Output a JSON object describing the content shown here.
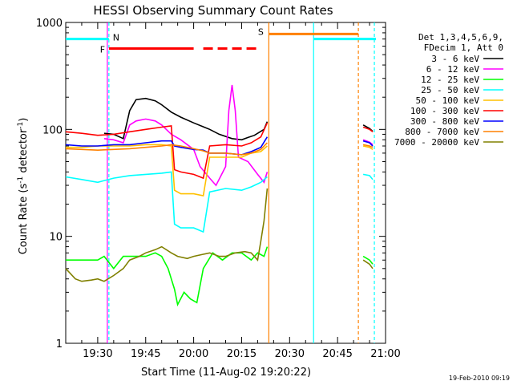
{
  "chart_data": {
    "type": "line",
    "title": "HESSI Observing Summary Count Rates",
    "xlabel": "Start Time (11-Aug-02 19:20:22)",
    "ylabel_main": "Count Rate (s",
    "ylabel_sup1": "-1",
    "ylabel_mid": " detector",
    "ylabel_sup2": "-1",
    "ylabel_end": ")",
    "footer": "19-Feb-2010 09:19",
    "yscale": "log",
    "ylim": [
      1,
      1000
    ],
    "xlim_minutes": [
      0,
      100
    ],
    "x_ticks": [
      {
        "label": "19:30",
        "t": 10
      },
      {
        "label": "19:45",
        "t": 25
      },
      {
        "label": "20:00",
        "t": 40
      },
      {
        "label": "20:15",
        "t": 55
      },
      {
        "label": "20:30",
        "t": 70
      },
      {
        "label": "20:45",
        "t": 85
      },
      {
        "label": "21:00",
        "t": 100
      }
    ],
    "y_ticks": [
      {
        "label": "1",
        "v": 1
      },
      {
        "label": "10",
        "v": 10
      },
      {
        "label": "100",
        "v": 100
      },
      {
        "label": "1000",
        "v": 1000
      }
    ],
    "legend_header": [
      "Det 1,3,4,5,6,9,",
      "FDecim 1, Att 0"
    ],
    "series": [
      {
        "name": "3 - 6 keV",
        "color": "#000000",
        "points": [
          [
            12,
            92
          ],
          [
            15,
            90
          ],
          [
            18,
            82
          ],
          [
            20,
            150
          ],
          [
            22,
            190
          ],
          [
            25,
            195
          ],
          [
            28,
            185
          ],
          [
            30,
            170
          ],
          [
            33,
            145
          ],
          [
            36,
            130
          ],
          [
            40,
            115
          ],
          [
            45,
            100
          ],
          [
            48,
            90
          ],
          [
            52,
            82
          ],
          [
            55,
            80
          ],
          [
            57,
            84
          ],
          [
            59,
            88
          ],
          [
            62,
            100
          ],
          [
            63,
            118
          ]
        ],
        "points2": [
          [
            93,
            110
          ],
          [
            95,
            102
          ],
          [
            96,
            96
          ]
        ]
      },
      {
        "name": "6 - 12 keV",
        "color": "#ff00ff",
        "points": [
          [
            12,
            82
          ],
          [
            15,
            80
          ],
          [
            18,
            75
          ],
          [
            20,
            110
          ],
          [
            22,
            120
          ],
          [
            25,
            125
          ],
          [
            28,
            120
          ],
          [
            30,
            110
          ],
          [
            33,
            90
          ],
          [
            36,
            80
          ],
          [
            40,
            65
          ],
          [
            42,
            45
          ],
          [
            45,
            35
          ],
          [
            47,
            30
          ],
          [
            50,
            45
          ],
          [
            51,
            150
          ],
          [
            52,
            260
          ],
          [
            53,
            150
          ],
          [
            54,
            55
          ],
          [
            57,
            50
          ],
          [
            60,
            38
          ],
          [
            62,
            32
          ],
          [
            63,
            40
          ]
        ],
        "points2": [
          [
            93,
            80
          ],
          [
            95,
            76
          ],
          [
            96,
            72
          ]
        ]
      },
      {
        "name": "12 - 25 keV",
        "color": "#00ff00",
        "points": [
          [
            0,
            6
          ],
          [
            5,
            6
          ],
          [
            10,
            6
          ],
          [
            12,
            6.5
          ],
          [
            15,
            5
          ],
          [
            18,
            6.5
          ],
          [
            21,
            6.5
          ],
          [
            25,
            6.5
          ],
          [
            28,
            7
          ],
          [
            30,
            6.5
          ],
          [
            32,
            5
          ],
          [
            34,
            3.2
          ],
          [
            35,
            2.3
          ],
          [
            37,
            3
          ],
          [
            39,
            2.6
          ],
          [
            41,
            2.4
          ],
          [
            43,
            5
          ],
          [
            46,
            7
          ],
          [
            49,
            6
          ],
          [
            52,
            7
          ],
          [
            55,
            7
          ],
          [
            58,
            6
          ],
          [
            60,
            7
          ],
          [
            62,
            6.5
          ],
          [
            63,
            8
          ]
        ],
        "points2": [
          [
            93,
            6.5
          ],
          [
            95,
            6
          ],
          [
            96,
            5.5
          ]
        ]
      },
      {
        "name": "25 - 50 keV",
        "color": "#00ffff",
        "points": [
          [
            0,
            36
          ],
          [
            5,
            34
          ],
          [
            10,
            32
          ],
          [
            15,
            35
          ],
          [
            20,
            37
          ],
          [
            25,
            38
          ],
          [
            30,
            39
          ],
          [
            33,
            40
          ],
          [
            34,
            13
          ],
          [
            36,
            12
          ],
          [
            40,
            12
          ],
          [
            43,
            11
          ],
          [
            45,
            26
          ],
          [
            50,
            28
          ],
          [
            55,
            27
          ],
          [
            58,
            29
          ],
          [
            61,
            32
          ],
          [
            63,
            36
          ]
        ],
        "points2": [
          [
            93,
            38
          ],
          [
            95,
            37
          ],
          [
            96,
            34
          ]
        ]
      },
      {
        "name": "50 - 100 keV",
        "color": "#ffc000",
        "points": [
          [
            0,
            68
          ],
          [
            5,
            68
          ],
          [
            10,
            70
          ],
          [
            15,
            70
          ],
          [
            20,
            70
          ],
          [
            25,
            72
          ],
          [
            30,
            72
          ],
          [
            33,
            70
          ],
          [
            34,
            27
          ],
          [
            36,
            25
          ],
          [
            40,
            25
          ],
          [
            43,
            24
          ],
          [
            45,
            55
          ],
          [
            50,
            55
          ],
          [
            55,
            55
          ],
          [
            58,
            60
          ],
          [
            61,
            62
          ],
          [
            63,
            70
          ]
        ],
        "points2": [
          [
            93,
            70
          ],
          [
            95,
            68
          ],
          [
            96,
            65
          ]
        ]
      },
      {
        "name": "100 - 300 keV",
        "color": "#ff0000",
        "points": [
          [
            0,
            95
          ],
          [
            5,
            92
          ],
          [
            10,
            88
          ],
          [
            15,
            90
          ],
          [
            20,
            95
          ],
          [
            25,
            100
          ],
          [
            30,
            105
          ],
          [
            33,
            108
          ],
          [
            34,
            42
          ],
          [
            36,
            40
          ],
          [
            40,
            38
          ],
          [
            43,
            35
          ],
          [
            45,
            70
          ],
          [
            50,
            72
          ],
          [
            55,
            70
          ],
          [
            58,
            75
          ],
          [
            61,
            85
          ],
          [
            63,
            115
          ]
        ],
        "points2": [
          [
            93,
            105
          ],
          [
            95,
            100
          ],
          [
            96,
            95
          ]
        ]
      },
      {
        "name": "300 - 800 keV",
        "color": "#0000ff",
        "points": [
          [
            0,
            72
          ],
          [
            5,
            70
          ],
          [
            10,
            70
          ],
          [
            15,
            72
          ],
          [
            20,
            72
          ],
          [
            25,
            75
          ],
          [
            30,
            78
          ],
          [
            33,
            78
          ],
          [
            34,
            70
          ],
          [
            36,
            68
          ],
          [
            40,
            65
          ],
          [
            43,
            64
          ],
          [
            45,
            60
          ],
          [
            50,
            60
          ],
          [
            55,
            58
          ],
          [
            58,
            62
          ],
          [
            61,
            68
          ],
          [
            63,
            85
          ]
        ],
        "points2": [
          [
            93,
            78
          ],
          [
            95,
            75
          ],
          [
            96,
            70
          ]
        ]
      },
      {
        "name": "800 - 7000 keV",
        "color": "#ff8000",
        "points": [
          [
            0,
            66
          ],
          [
            5,
            65
          ],
          [
            10,
            64
          ],
          [
            15,
            65
          ],
          [
            20,
            66
          ],
          [
            25,
            68
          ],
          [
            30,
            70
          ],
          [
            33,
            72
          ],
          [
            36,
            70
          ],
          [
            40,
            66
          ],
          [
            43,
            63
          ],
          [
            45,
            60
          ],
          [
            50,
            60
          ],
          [
            55,
            58
          ],
          [
            58,
            60
          ],
          [
            61,
            65
          ],
          [
            63,
            75
          ]
        ],
        "points2": [
          [
            93,
            72
          ],
          [
            95,
            70
          ],
          [
            96,
            68
          ]
        ]
      },
      {
        "name": "7000 - 20000 keV",
        "color": "#808000",
        "points": [
          [
            0,
            5
          ],
          [
            3,
            4
          ],
          [
            5,
            3.8
          ],
          [
            8,
            3.9
          ],
          [
            10,
            4
          ],
          [
            12,
            3.8
          ],
          [
            15,
            4.3
          ],
          [
            18,
            5
          ],
          [
            20,
            6
          ],
          [
            23,
            6.5
          ],
          [
            25,
            7
          ],
          [
            28,
            7.5
          ],
          [
            30,
            8
          ],
          [
            33,
            7
          ],
          [
            35,
            6.5
          ],
          [
            38,
            6.2
          ],
          [
            40,
            6.5
          ],
          [
            43,
            6.8
          ],
          [
            45,
            7
          ],
          [
            48,
            6.5
          ],
          [
            50,
            6.5
          ],
          [
            53,
            7
          ],
          [
            56,
            7.2
          ],
          [
            58,
            7
          ],
          [
            60,
            6
          ],
          [
            61,
            9
          ],
          [
            62,
            14
          ],
          [
            63,
            28
          ]
        ],
        "points2": [
          [
            93,
            6
          ],
          [
            95,
            5.5
          ],
          [
            96,
            5
          ]
        ]
      }
    ],
    "flags": [
      {
        "label": "N",
        "color": "#00ffff",
        "start": 0,
        "end": 13.5,
        "v": 700
      },
      {
        "label": "F",
        "color": "#ff0000",
        "start": 13.5,
        "end": 40,
        "v": 570
      },
      {
        "label": "S",
        "color": "#ff8000",
        "start": 63.5,
        "end": 91.5,
        "v": 780
      }
    ]
  }
}
